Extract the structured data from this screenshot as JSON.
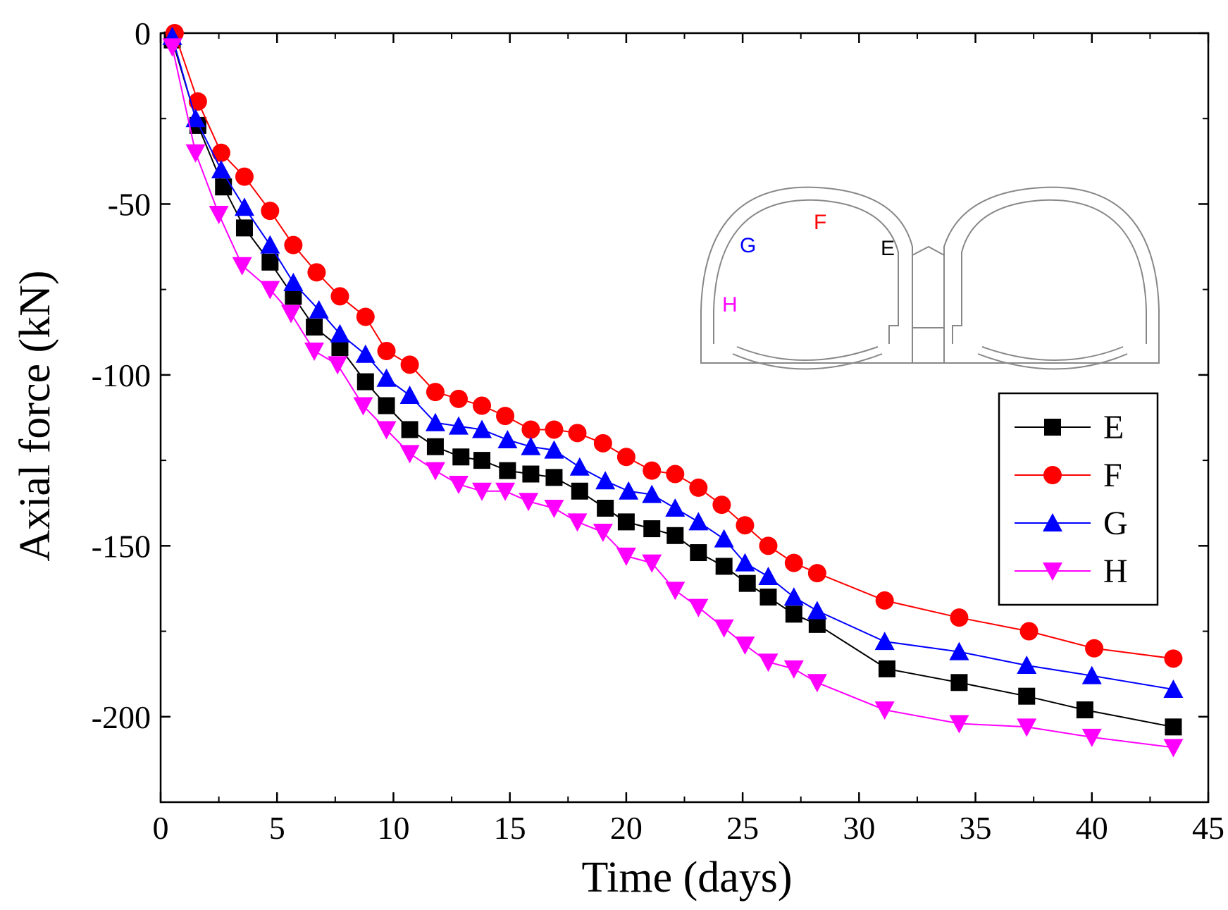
{
  "chart_data": {
    "type": "line",
    "xlabel": "Time (days)",
    "ylabel": "Axial force (kN)",
    "xlim": [
      0,
      45
    ],
    "ylim": [
      -225,
      0
    ],
    "x_ticks": [
      0,
      5,
      10,
      15,
      20,
      25,
      30,
      35,
      40,
      45
    ],
    "y_ticks": [
      0,
      -50,
      -100,
      -150,
      -200
    ],
    "grid": false,
    "legend_position": "right",
    "series": [
      {
        "name": "E",
        "color": "#000000",
        "marker": "square",
        "x": [
          0.5,
          1.6,
          2.7,
          3.6,
          4.7,
          5.7,
          6.6,
          7.7,
          8.8,
          9.7,
          10.7,
          11.8,
          12.9,
          13.8,
          14.9,
          15.9,
          16.9,
          18.0,
          19.1,
          20.0,
          21.1,
          22.1,
          23.1,
          24.2,
          25.2,
          26.1,
          27.2,
          28.2,
          31.2,
          34.3,
          37.2,
          39.7,
          43.5
        ],
        "y": [
          -2,
          -27,
          -45,
          -57,
          -67,
          -77,
          -86,
          -92,
          -102,
          -109,
          -116,
          -121,
          -124,
          -125,
          -128,
          -129,
          -130,
          -134,
          -139,
          -143,
          -145,
          -147,
          -152,
          -156,
          -161,
          -165,
          -170,
          -173,
          -186,
          -190,
          -194,
          -198,
          -203
        ]
      },
      {
        "name": "F",
        "color": "#ff0000",
        "marker": "circle",
        "x": [
          0.6,
          1.6,
          2.6,
          3.6,
          4.7,
          5.7,
          6.7,
          7.7,
          8.8,
          9.7,
          10.7,
          11.8,
          12.8,
          13.8,
          14.8,
          15.9,
          16.9,
          17.9,
          19.0,
          20.0,
          21.1,
          22.1,
          23.1,
          24.1,
          25.1,
          26.1,
          27.2,
          28.2,
          31.1,
          34.3,
          37.3,
          40.1,
          43.5
        ],
        "y": [
          0,
          -20,
          -35,
          -42,
          -52,
          -62,
          -70,
          -77,
          -83,
          -93,
          -97,
          -105,
          -107,
          -109,
          -112,
          -116,
          -116,
          -117,
          -120,
          -124,
          -128,
          -129,
          -133,
          -138,
          -144,
          -150,
          -155,
          -158,
          -166,
          -171,
          -175,
          -180,
          -183
        ]
      },
      {
        "name": "G",
        "color": "#0000ff",
        "marker": "triangle-up",
        "x": [
          0.5,
          1.5,
          2.6,
          3.6,
          4.7,
          5.7,
          6.8,
          7.7,
          8.8,
          9.7,
          10.7,
          11.8,
          12.8,
          13.8,
          14.9,
          15.9,
          16.9,
          18.0,
          19.1,
          20.1,
          21.1,
          22.1,
          23.1,
          24.2,
          25.1,
          26.1,
          27.2,
          28.2,
          31.1,
          34.3,
          37.2,
          40.0,
          43.5
        ],
        "y": [
          -1,
          -25,
          -40,
          -51,
          -62,
          -73,
          -81,
          -88,
          -94,
          -101,
          -106,
          -114,
          -115,
          -116,
          -119,
          -121,
          -122,
          -127,
          -131,
          -134,
          -135,
          -139,
          -143,
          -148,
          -155,
          -159,
          -165,
          -169,
          -178,
          -181,
          -185,
          -188,
          -192
        ]
      },
      {
        "name": "H",
        "color": "#ff00ff",
        "marker": "triangle-down",
        "x": [
          0.5,
          1.5,
          2.5,
          3.5,
          4.7,
          5.6,
          6.6,
          7.6,
          8.7,
          9.7,
          10.7,
          11.8,
          12.8,
          13.8,
          14.8,
          15.8,
          16.9,
          17.9,
          19.0,
          20.0,
          21.1,
          22.1,
          23.1,
          24.2,
          25.1,
          26.1,
          27.2,
          28.2,
          31.1,
          34.3,
          37.2,
          40.0,
          43.5
        ],
        "y": [
          -4,
          -35,
          -53,
          -68,
          -75,
          -82,
          -93,
          -97,
          -109,
          -116,
          -123,
          -128,
          -132,
          -134,
          -134,
          -137,
          -139,
          -143,
          -146,
          -153,
          -155,
          -163,
          -168,
          -174,
          -179,
          -184,
          -186,
          -190,
          -198,
          -202,
          -203,
          -206,
          -209
        ]
      }
    ]
  },
  "inset": {
    "labels": [
      {
        "text": "G",
        "color": "#0000ff"
      },
      {
        "text": "F",
        "color": "#ff0000"
      },
      {
        "text": "E",
        "color": "#000000"
      },
      {
        "text": "H",
        "color": "#ff00ff"
      }
    ]
  }
}
